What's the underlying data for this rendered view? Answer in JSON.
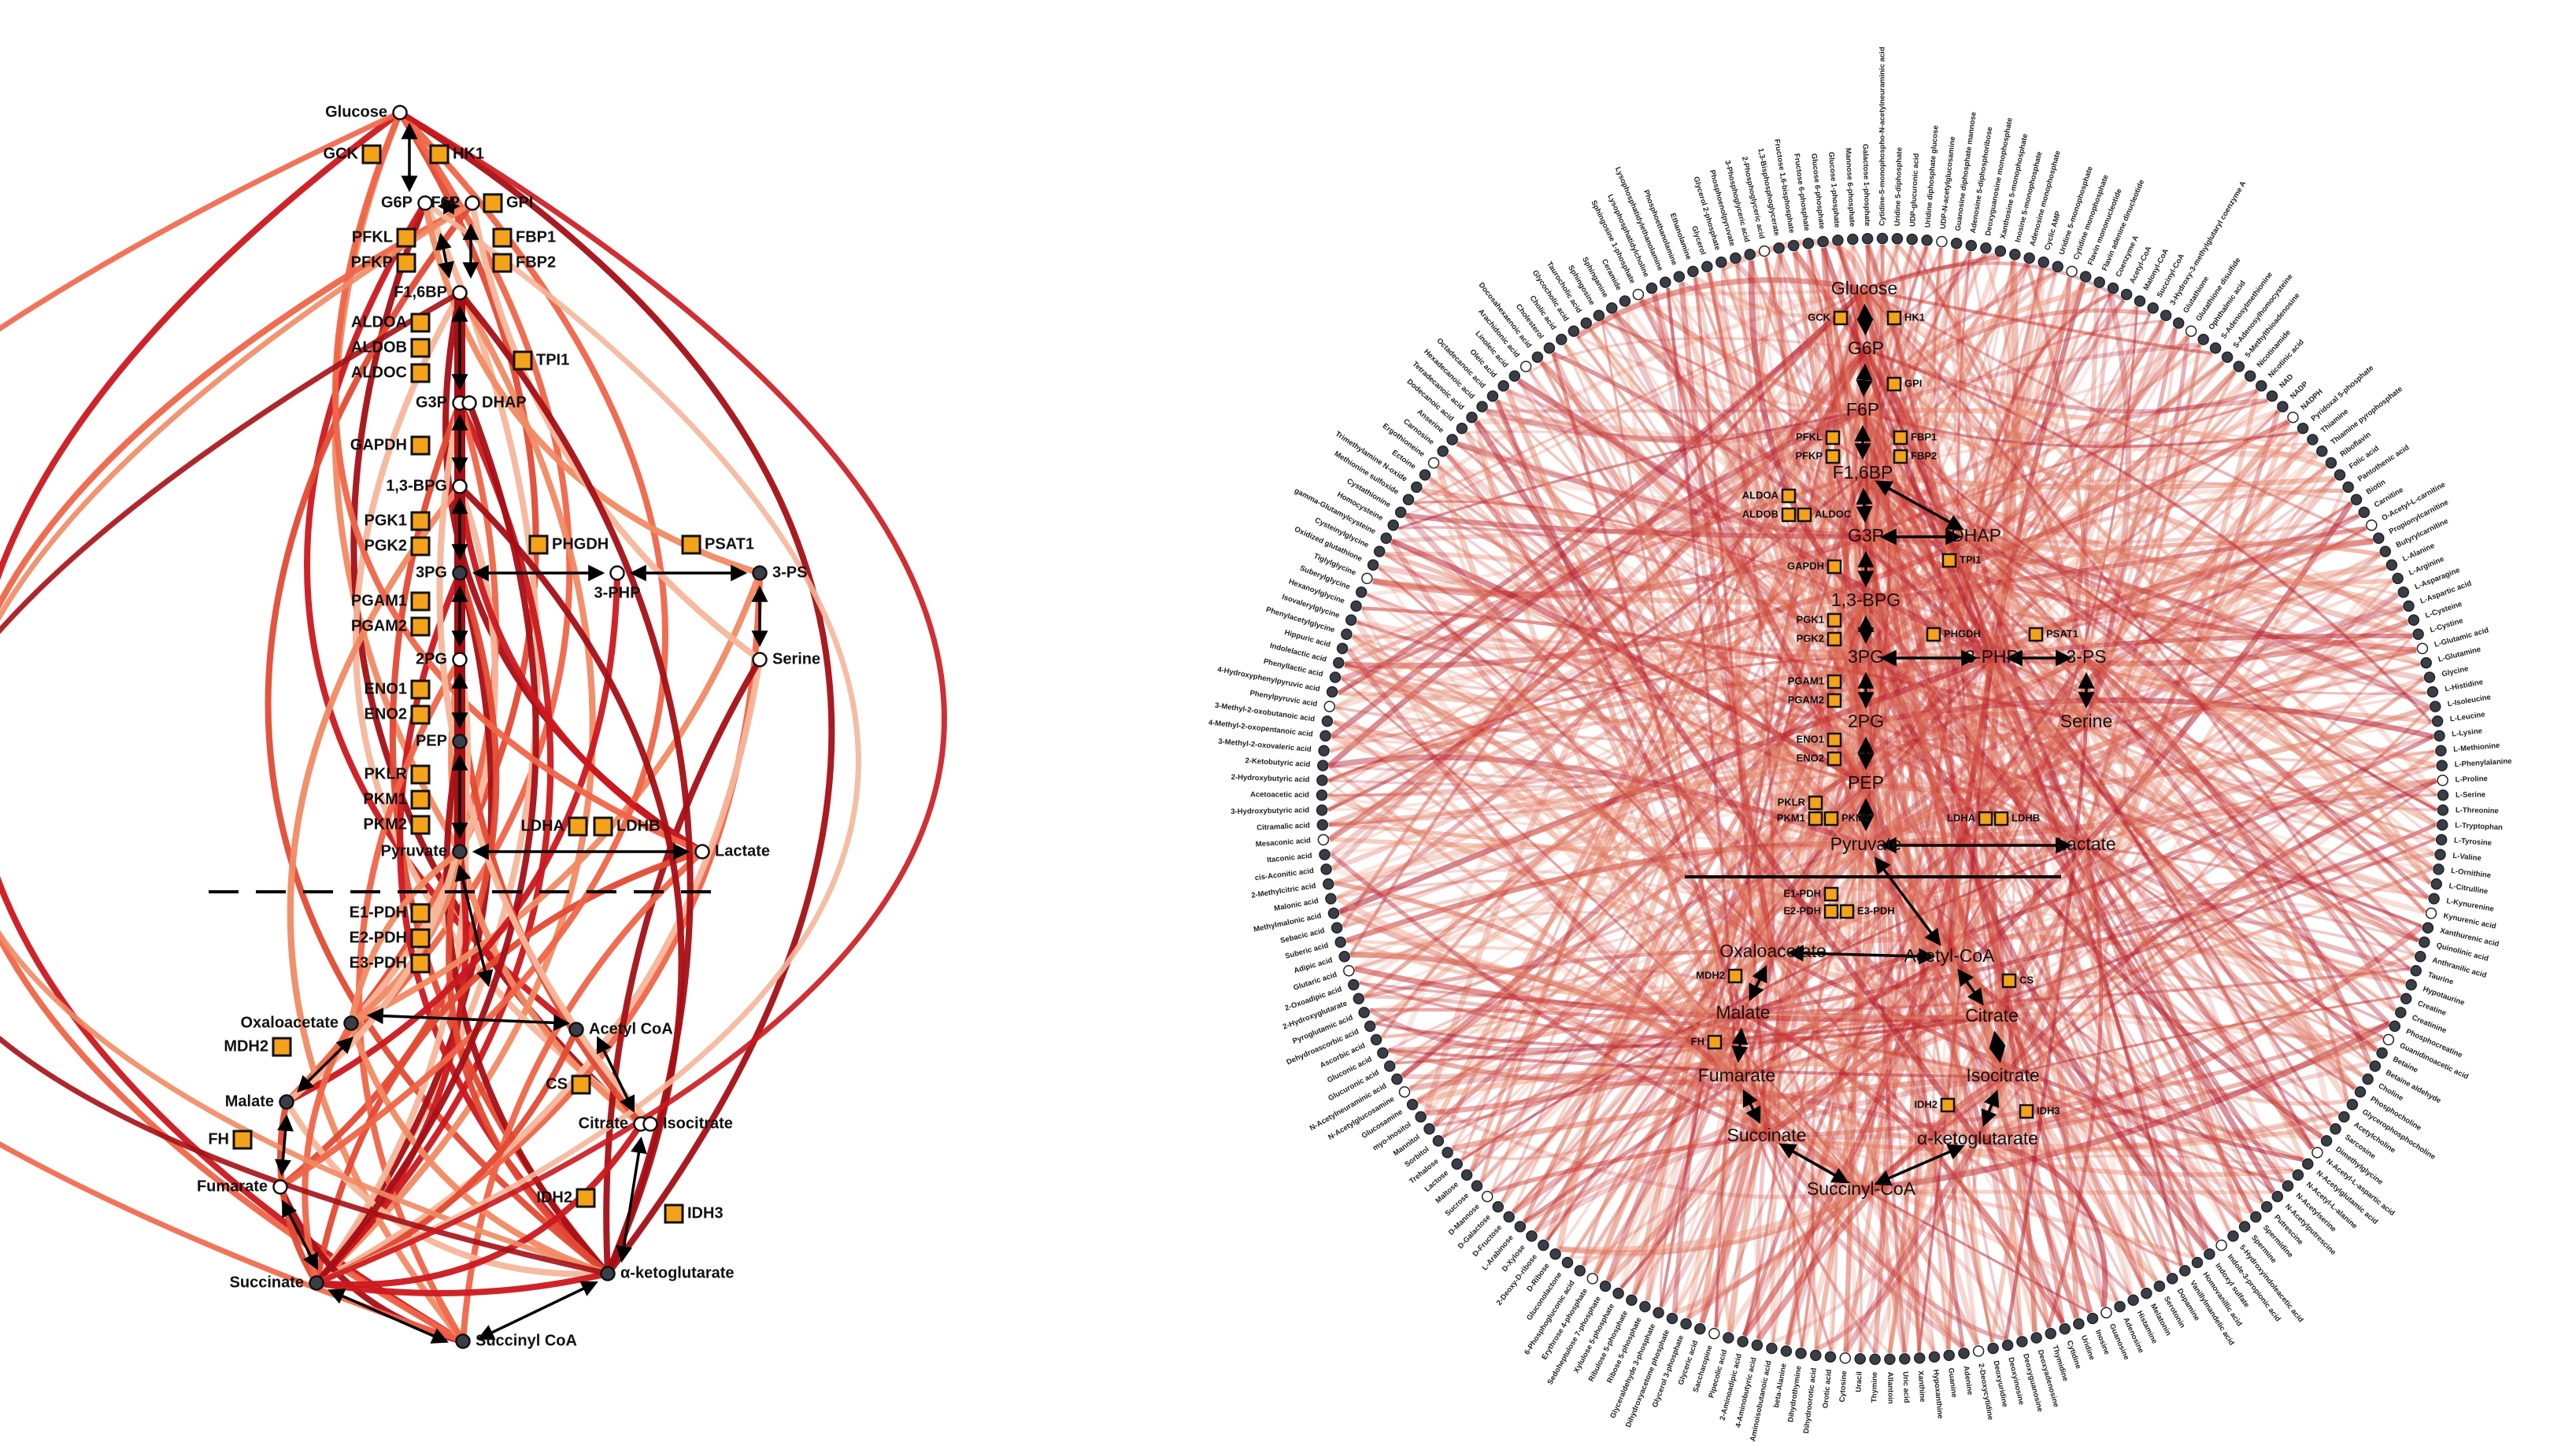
{
  "colors": {
    "enzyme_fill": "#f5a21b",
    "enzyme_stroke": "#111111",
    "node_dark": "#3a3f47",
    "node_light": "#ffffff",
    "edge_palette": [
      "#a50f15",
      "#cb181d",
      "#e34a33",
      "#ef6548",
      "#f08a63",
      "#f4b69a"
    ],
    "arrow": "#000000"
  },
  "left_panel": {
    "metabolites": [
      {
        "id": "glucose",
        "label": "Glucose",
        "fill": "light",
        "side": "left"
      },
      {
        "id": "g6p",
        "label": "G6P",
        "fill": "light",
        "side": "left"
      },
      {
        "id": "f6p",
        "label": "F6P",
        "fill": "light",
        "side": "left"
      },
      {
        "id": "f16bp",
        "label": "F1,6BP",
        "fill": "light",
        "side": "left"
      },
      {
        "id": "g3p",
        "label": "G3P",
        "fill": "light",
        "side": "left"
      },
      {
        "id": "dhap",
        "label": "DHAP",
        "fill": "light",
        "side": "right"
      },
      {
        "id": "bpg",
        "label": "1,3-BPG",
        "fill": "light",
        "side": "left"
      },
      {
        "id": "pg3",
        "label": "3PG",
        "fill": "dark",
        "side": "left"
      },
      {
        "id": "php",
        "label": "3-PHP",
        "fill": "light",
        "side": "below"
      },
      {
        "id": "ps",
        "label": "3-PS",
        "fill": "dark",
        "side": "right"
      },
      {
        "id": "serine",
        "label": "Serine",
        "fill": "light",
        "side": "right"
      },
      {
        "id": "pg2",
        "label": "2PG",
        "fill": "light",
        "side": "left"
      },
      {
        "id": "pep",
        "label": "PEP",
        "fill": "dark",
        "side": "left"
      },
      {
        "id": "pyruvate",
        "label": "Pyruvate",
        "fill": "dark",
        "side": "left"
      },
      {
        "id": "lactate",
        "label": "Lactate",
        "fill": "light",
        "side": "right"
      },
      {
        "id": "oaa",
        "label": "Oxaloacetate",
        "fill": "dark",
        "side": "left"
      },
      {
        "id": "acoa",
        "label": "Acetyl CoA",
        "fill": "dark",
        "side": "right"
      },
      {
        "id": "malate",
        "label": "Malate",
        "fill": "dark",
        "side": "left"
      },
      {
        "id": "citrate",
        "label": "Citrate",
        "fill": "light",
        "side": "left"
      },
      {
        "id": "isocitrate",
        "label": "Isocitrate",
        "fill": "light",
        "side": "right"
      },
      {
        "id": "fumarate",
        "label": "Fumarate",
        "fill": "light",
        "side": "left"
      },
      {
        "id": "akg",
        "label": "α-ketoglutarate",
        "fill": "dark",
        "side": "right"
      },
      {
        "id": "succinate",
        "label": "Succinate",
        "fill": "dark",
        "side": "left"
      },
      {
        "id": "succoa",
        "label": "Succinyl CoA",
        "fill": "dark",
        "side": "right"
      }
    ],
    "enzymes": [
      "GCK",
      "HK1",
      "GPI",
      "PFKL",
      "PFKP",
      "FBP1",
      "FBP2",
      "ALDOA",
      "ALDOB",
      "ALDOC",
      "TPI1",
      "GAPDH",
      "PGK1",
      "PGK2",
      "PHGDH",
      "PSAT1",
      "PGAM1",
      "PGAM2",
      "ENO1",
      "ENO2",
      "PKLR",
      "PKM1",
      "PKM2",
      "LDHA",
      "LDHB",
      "E1-PDH",
      "E2-PDH",
      "E3-PDH",
      "MDH2",
      "CS",
      "FH",
      "IDH2",
      "IDH3"
    ]
  },
  "right_panel": {
    "metabolites": [
      {
        "id": "glucose",
        "label": "Glucose"
      },
      {
        "id": "g6p",
        "label": "G6P"
      },
      {
        "id": "f6p",
        "label": "F6P"
      },
      {
        "id": "f16bp",
        "label": "F1,6BP"
      },
      {
        "id": "g3p",
        "label": "G3P"
      },
      {
        "id": "dhap",
        "label": "DHAP"
      },
      {
        "id": "bpg",
        "label": "1,3-BPG"
      },
      {
        "id": "pg3",
        "label": "3PG"
      },
      {
        "id": "php",
        "label": "3-PHP"
      },
      {
        "id": "ps",
        "label": "3-PS"
      },
      {
        "id": "serine",
        "label": "Serine"
      },
      {
        "id": "pg2",
        "label": "2PG"
      },
      {
        "id": "pep",
        "label": "PEP"
      },
      {
        "id": "pyruvate",
        "label": "Pyruvate"
      },
      {
        "id": "lactate",
        "label": "Lactate"
      },
      {
        "id": "oaa",
        "label": "Oxaloacetate"
      },
      {
        "id": "acoa",
        "label": "Acetyl-CoA"
      },
      {
        "id": "malate",
        "label": "Malate"
      },
      {
        "id": "citrate",
        "label": "Citrate"
      },
      {
        "id": "isocitrate",
        "label": "Isocitrate"
      },
      {
        "id": "fumarate",
        "label": "Fumarate"
      },
      {
        "id": "akg",
        "label": "α-ketoglutarate"
      },
      {
        "id": "succinate",
        "label": "Succinate"
      },
      {
        "id": "succoa",
        "label": "Succinyl-CoA"
      }
    ],
    "enzymes": [
      "GCK",
      "HK1",
      "GPI",
      "PFKL",
      "PFKP",
      "FBP1",
      "FBP2",
      "ALDOA",
      "ALDOB",
      "ALDOC",
      "TPI1",
      "GAPDH",
      "PGK1",
      "PGK2",
      "PHGDH",
      "PSAT1",
      "PGAM1",
      "PGAM2",
      "ENO1",
      "ENO2",
      "PKLR",
      "PKM1",
      "PKM2",
      "LDHA",
      "LDHB",
      "E1-PDH",
      "E2-PDH",
      "E3-PDH",
      "MDH2",
      "CS",
      "FH",
      "IDH2",
      "IDH3"
    ],
    "ring_metabolites": [
      "Cytidine-5-monophospho-N-acetylneuraminic acid",
      "Uridine 5-diphosphate",
      "UDP-glucuronic acid",
      "Uridine diphosphate glucose",
      "UDP-N-acetylglucosamine",
      "Guanosine diphosphate mannose",
      "Adenosine 5-diphosphoribose",
      "Deoxyguanosine monophosphate",
      "Xanthosine 5-monophosphate",
      "Inosine 5-monophosphate",
      "Adenosine monophosphate",
      "Cyclic AMP",
      "Uridine 5-monophosphate",
      "Cytidine monophosphate",
      "Flavin mononucleotide",
      "Flavin adenine dinucleotide",
      "Coenzyme A",
      "Acetyl-CoA",
      "Malonyl-CoA",
      "Succinyl-CoA",
      "3-Hydroxy-3-methylglutaryl coenzyme A",
      "Glutathione",
      "Glutathione disulfide",
      "Ophthalmic acid",
      "S-Adenosylmethionine",
      "S-Adenosylhomocysteine",
      "5-Methylthioadenosine",
      "Nicotinamide",
      "Nicotinic acid",
      "NAD",
      "NADP",
      "NADPH",
      "Pyridoxal 5-phosphate",
      "Thiamine",
      "Thiamine pyrophosphate",
      "Riboflavin",
      "Folic acid",
      "Pantothenic acid",
      "Biotin",
      "Carnitine",
      "O-Acetyl-L-carnitine",
      "Propionylcarnitine",
      "Butyrylcarnitine",
      "L-Alanine",
      "L-Arginine",
      "L-Asparagine",
      "L-Aspartic acid",
      "L-Cysteine",
      "L-Cystine",
      "L-Glutamic acid",
      "L-Glutamine",
      "Glycine",
      "L-Histidine",
      "L-Isoleucine",
      "L-Leucine",
      "L-Lysine",
      "L-Methionine",
      "L-Phenylalanine",
      "L-Proline",
      "L-Serine",
      "L-Threonine",
      "L-Tryptophan",
      "L-Tyrosine",
      "L-Valine",
      "L-Ornithine",
      "L-Citrulline",
      "L-Kynurenine",
      "Kynurenic acid",
      "Xanthurenic acid",
      "Quinolinic acid",
      "Anthranilic acid",
      "Taurine",
      "Hypotaurine",
      "Creatine",
      "Creatinine",
      "Phosphocreatine",
      "Guanidinoacetic acid",
      "Betaine",
      "Betaine aldehyde",
      "Choline",
      "Phosphocholine",
      "Glycerophosphocholine",
      "Acetylcholine",
      "Sarcosine",
      "Dimethylglycine",
      "N-Acetyl-L-aspartic acid",
      "N-Acetylglutamic acid",
      "N-Acetyl-L-alanine",
      "N-Acetylserine",
      "N-Acetylputrescine",
      "Putrescine",
      "Spermidine",
      "Spermine",
      "5-Hydroxyindoleacetic acid",
      "Indole-3-propionic acid",
      "Indoxyl sulfate",
      "Homovanillic acid",
      "Vanillylmandelic acid",
      "Dopamine",
      "Serotonin",
      "Melatonin",
      "Histamine",
      "Adenosine",
      "Guanosine",
      "Inosine",
      "Uridine",
      "Cytidine",
      "Thymidine",
      "Deoxyadenosine",
      "Deoxyguanosine",
      "Deoxyinosine",
      "Deoxyuridine",
      "2-Deoxycytidine",
      "Adenine",
      "Guanine",
      "Hypoxanthine",
      "Xanthine",
      "Uric acid",
      "Allantoin",
      "Thymine",
      "Uracil",
      "Cytosine",
      "Orotic acid",
      "Dihydroorotic acid",
      "Dihydrothymine",
      "beta-Alanine",
      "3-Aminoisobutanoic acid",
      "4-Aminobutyric acid",
      "2-Aminoadipic acid",
      "Pipecolic acid",
      "Saccharopine",
      "Glyceric acid",
      "Glycerol 3-phosphate",
      "Dihydroxyacetone phosphate",
      "Glyceraldehyde 3-phosphate",
      "Ribose 5-phosphate",
      "Ribulose 5-phosphate",
      "Xylulose 5-phosphate",
      "Sedoheptulose 7-phosphate",
      "Erythrose 4-phosphate",
      "6-Phosphogluconic acid",
      "Gluconolactone",
      "D-Ribose",
      "2-Deoxy-D-ribose",
      "D-Xylose",
      "L-Arabinose",
      "D-Fructose",
      "D-Galactose",
      "D-Mannose",
      "Sucrose",
      "Maltose",
      "Lactose",
      "Trehalose",
      "Sorbitol",
      "Mannitol",
      "myo-Inositol",
      "Glucosamine",
      "N-Acetylglucosamine",
      "N-Acetylneuraminic acid",
      "Glucuronic acid",
      "Gluconic acid",
      "Ascorbic acid",
      "Dehydroascorbic acid",
      "Pyroglutamic acid",
      "2-Hydroxyglutarate",
      "2-Oxoadipic acid",
      "Glutaric acid",
      "Adipic acid",
      "Suberic acid",
      "Sebacic acid",
      "Methylmalonic acid",
      "Malonic acid",
      "2-Methylcitric acid",
      "cis-Aconitic acid",
      "Itaconic acid",
      "Mesaconic acid",
      "Citramalic acid",
      "3-Hydroxybutyric acid",
      "Acetoacetic acid",
      "2-Hydroxybutyric acid",
      "2-Ketobutyric acid",
      "3-Methyl-2-oxovaleric acid",
      "4-Methyl-2-oxopentanoic acid",
      "3-Methyl-2-oxobutanoic acid",
      "Phenylpyruvic acid",
      "4-Hydroxyphenylpyruvic acid",
      "Phenyllactic acid",
      "Indolelactic acid",
      "Hippuric acid",
      "Phenylacetylglycine",
      "Isovalerylglycine",
      "Hexanoylglycine",
      "Suberylglycine",
      "Tiglylglycine",
      "Oxidized glutathione",
      "Cysteinylglycine",
      "gamma-Glutamylcysteine",
      "Homocysteine",
      "Cystathionine",
      "Methionine sulfoxide",
      "Trimethylamine N-oxide",
      "Ectoine",
      "Ergothioneine",
      "Carnosine",
      "Anserine",
      "Dodecanoic acid",
      "Tetradecanoic acid",
      "Hexadecanoic acid",
      "Octadecanoic acid",
      "Oleic acid",
      "Linoleic acid",
      "Arachidonic acid",
      "Docosahexaenoic acid",
      "Cholesterol",
      "Cholic acid",
      "Glycocholic acid",
      "Taurocholic acid",
      "Sphingosine",
      "Sphinganine",
      "Ceramide",
      "Sphingosine 1-phosphate",
      "Lysophosphatidylcholine",
      "Lysophosphatidylethanolamine",
      "Phosphoethanolamine",
      "Ethanolamine",
      "Glycerol",
      "Glycerol 2-phosphate",
      "Phosphoenolpyruvate",
      "3-Phosphoglyceric acid",
      "2-Phosphoglyceric acid",
      "1,3-Bisphosphoglycerate",
      "Fructose 1,6-bisphosphate",
      "Fructose 6-phosphate",
      "Glucose 6-phosphate",
      "Glucose 1-phosphate",
      "Mannose 6-phosphate",
      "Galactose 1-phosphate"
    ]
  }
}
